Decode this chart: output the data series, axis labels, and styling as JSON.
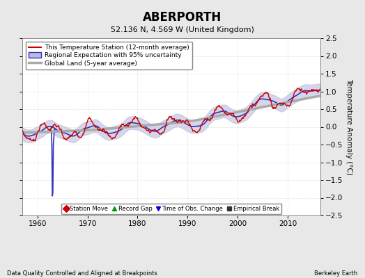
{
  "title": "ABERPORTH",
  "subtitle": "52.136 N, 4.569 W (United Kingdom)",
  "xlabel_left": "Data Quality Controlled and Aligned at Breakpoints",
  "xlabel_right": "Berkeley Earth",
  "ylabel": "Temperature Anomaly (°C)",
  "xlim": [
    1957,
    2016.5
  ],
  "ylim": [
    -2.5,
    2.5
  ],
  "yticks": [
    -2.5,
    -2,
    -1.5,
    -1,
    -0.5,
    0,
    0.5,
    1,
    1.5,
    2,
    2.5
  ],
  "xticks": [
    1960,
    1970,
    1980,
    1990,
    2000,
    2010
  ],
  "bg_color": "#e8e8e8",
  "plot_bg_color": "#ffffff",
  "grid_color": "#cccccc",
  "station_line_color": "#cc0000",
  "regional_line_color": "#3333bb",
  "regional_fill_color": "#bbbbdd",
  "global_line_color": "#aaaaaa",
  "legend_labels": [
    "This Temperature Station (12-month average)",
    "Regional Expectation with 95% uncertainty",
    "Global Land (5-year average)"
  ],
  "marker_labels": [
    "Station Move",
    "Record Gap",
    "Time of Obs. Change",
    "Empirical Break"
  ],
  "marker_colors": [
    "#cc0000",
    "#009900",
    "#0000cc",
    "#333333"
  ],
  "marker_shapes": [
    "D",
    "^",
    "v",
    "s"
  ]
}
